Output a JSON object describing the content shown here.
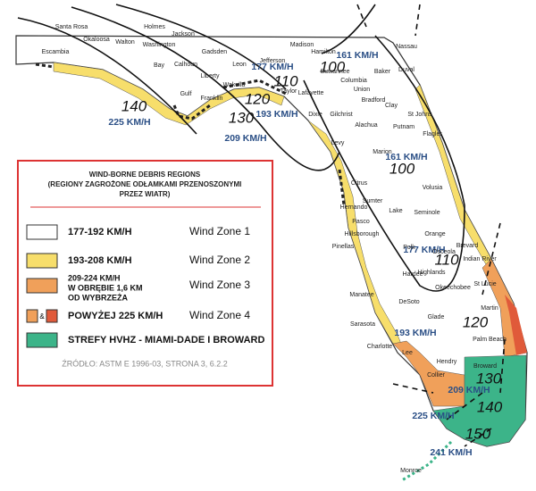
{
  "legend": {
    "title": [
      "WIND-BORNE DEBRIS REGIONS",
      "(REGIONY ZAGROŻONE ODŁAMKAMI PRZENOSZONYMI",
      "PRZEZ WIATR)"
    ],
    "items": [
      {
        "label": [
          "177-192 KM/H"
        ],
        "zone": "Wind Zone 1"
      },
      {
        "label": [
          "193-208 KM/H"
        ],
        "zone": "Wind Zone 2"
      },
      {
        "label": [
          "209-224 KM/H",
          "W OBRĘBIE 1,6 KM",
          "OD WYBRZEŻA"
        ],
        "zone": "Wind Zone 3"
      },
      {
        "label": [
          "POWYŻEJ 225 KM/H"
        ],
        "zone": "Wind Zone 4"
      },
      {
        "label": [
          "STREFY HVHZ - MIAMI-DADE I BROWARD"
        ]
      }
    ],
    "and": "&",
    "source": "ŹRÓDŁO: ASTM E 1996-03, STRONA 3, 6.2.2"
  },
  "contours": [
    {
      "mph": "140",
      "kmh": "225 KM/H"
    },
    {
      "mph": "130",
      "kmh": "209 KM/H"
    },
    {
      "mph": "120",
      "kmh": "193 KM/H"
    },
    {
      "mph": "110",
      "kmh": "177 KM/H"
    },
    {
      "mph": "100",
      "kmh": "161 KM/H"
    },
    {
      "mph": "100",
      "kmh": "161 KM/H"
    },
    {
      "mph": "110",
      "kmh": "177 KM/H"
    },
    {
      "mph": "120",
      "kmh": "193 KM/H"
    },
    {
      "mph": "130",
      "kmh": "209 KM/H"
    },
    {
      "mph": "140",
      "kmh": "225 KM/H"
    },
    {
      "mph": "150",
      "kmh": "241 KM/H"
    }
  ],
  "counties": [
    "Escambia",
    "Santa Rosa",
    "Okaloosa",
    "Walton",
    "Holmes",
    "Washington",
    "Jackson",
    "Bay",
    "Calhoun",
    "Gadsden",
    "Liberty",
    "Gulf",
    "Franklin",
    "Wakulla",
    "Leon",
    "Jefferson",
    "Madison",
    "Taylor",
    "Hamilton",
    "Suwannee",
    "Lafayette",
    "Dixie",
    "Columbia",
    "Gilchrist",
    "Baker",
    "Union",
    "Bradford",
    "Nassau",
    "Duval",
    "Clay",
    "St Johns",
    "Alachua",
    "Putnam",
    "Flagler",
    "Levy",
    "Marion",
    "Volusia",
    "Citrus",
    "Sumter",
    "Lake",
    "Hernando",
    "Seminole",
    "Pasco",
    "Orange",
    "Pinellas",
    "Hillsborough",
    "Polk",
    "Osceola",
    "Brevard",
    "Indian River",
    "Manatee",
    "Hardee",
    "Highlands",
    "Okeechobee",
    "St Lucie",
    "Sarasota",
    "DeSoto",
    "Martin",
    "Charlotte",
    "Glade",
    "Lee",
    "Hendry",
    "Palm Beach",
    "Collier",
    "Broward",
    "Monroe"
  ]
}
